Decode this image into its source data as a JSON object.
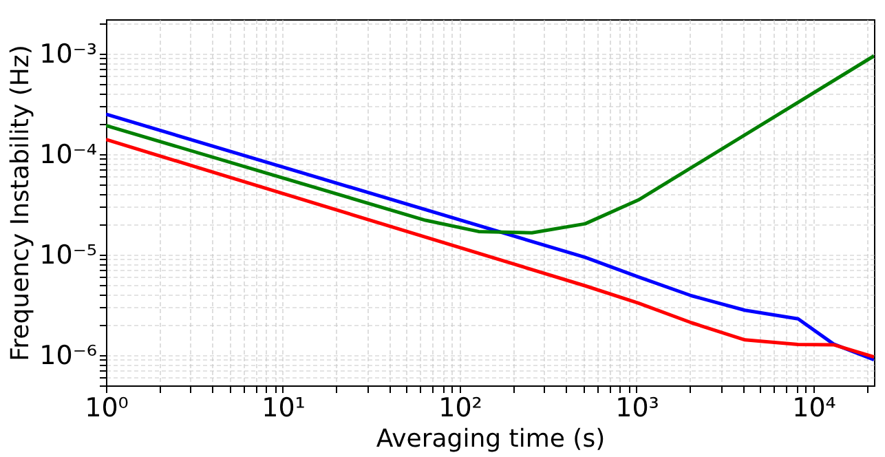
{
  "chart_data": {
    "type": "line",
    "xlabel": "Averaging time (s)",
    "ylabel": "Frequency Instability (Hz)",
    "log": "xy",
    "grid": true,
    "line_style": "solid",
    "marker": "none",
    "xlim": [
      1,
      22000
    ],
    "ylim": [
      5e-07,
      0.0022
    ],
    "xticks": [
      {
        "value": 1,
        "label": "10⁰"
      },
      {
        "value": 2,
        "label": null
      },
      {
        "value": 3,
        "label": null
      },
      {
        "value": 4,
        "label": null
      },
      {
        "value": 5,
        "label": null
      },
      {
        "value": 6,
        "label": null
      },
      {
        "value": 7,
        "label": null
      },
      {
        "value": 8,
        "label": null
      },
      {
        "value": 9,
        "label": null
      },
      {
        "value": 10,
        "label": "10¹"
      },
      {
        "value": 20,
        "label": null
      },
      {
        "value": 30,
        "label": null
      },
      {
        "value": 40,
        "label": null
      },
      {
        "value": 50,
        "label": null
      },
      {
        "value": 60,
        "label": null
      },
      {
        "value": 70,
        "label": null
      },
      {
        "value": 80,
        "label": null
      },
      {
        "value": 90,
        "label": null
      },
      {
        "value": 100,
        "label": "10²"
      },
      {
        "value": 200,
        "label": null
      },
      {
        "value": 300,
        "label": null
      },
      {
        "value": 400,
        "label": null
      },
      {
        "value": 500,
        "label": null
      },
      {
        "value": 600,
        "label": null
      },
      {
        "value": 700,
        "label": null
      },
      {
        "value": 800,
        "label": null
      },
      {
        "value": 900,
        "label": null
      },
      {
        "value": 1000,
        "label": "10³"
      },
      {
        "value": 2000,
        "label": null
      },
      {
        "value": 3000,
        "label": null
      },
      {
        "value": 4000,
        "label": null
      },
      {
        "value": 5000,
        "label": null
      },
      {
        "value": 6000,
        "label": null
      },
      {
        "value": 7000,
        "label": null
      },
      {
        "value": 8000,
        "label": null
      },
      {
        "value": 9000,
        "label": null
      },
      {
        "value": 10000,
        "label": "10⁴"
      },
      {
        "value": 20000,
        "label": null
      }
    ],
    "yticks": [
      {
        "value": 5e-07,
        "label": null
      },
      {
        "value": 6e-07,
        "label": null
      },
      {
        "value": 7e-07,
        "label": null
      },
      {
        "value": 8e-07,
        "label": null
      },
      {
        "value": 9e-07,
        "label": null
      },
      {
        "value": 1e-06,
        "label": "10⁻⁶"
      },
      {
        "value": 2e-06,
        "label": null
      },
      {
        "value": 3e-06,
        "label": null
      },
      {
        "value": 4e-06,
        "label": null
      },
      {
        "value": 5e-06,
        "label": null
      },
      {
        "value": 6e-06,
        "label": null
      },
      {
        "value": 7e-06,
        "label": null
      },
      {
        "value": 8e-06,
        "label": null
      },
      {
        "value": 9e-06,
        "label": null
      },
      {
        "value": 1e-05,
        "label": "10⁻⁵"
      },
      {
        "value": 2e-05,
        "label": null
      },
      {
        "value": 3e-05,
        "label": null
      },
      {
        "value": 4e-05,
        "label": null
      },
      {
        "value": 5e-05,
        "label": null
      },
      {
        "value": 6e-05,
        "label": null
      },
      {
        "value": 7e-05,
        "label": null
      },
      {
        "value": 8e-05,
        "label": null
      },
      {
        "value": 9e-05,
        "label": null
      },
      {
        "value": 0.0001,
        "label": "10⁻⁴"
      },
      {
        "value": 0.0002,
        "label": null
      },
      {
        "value": 0.0003,
        "label": null
      },
      {
        "value": 0.0004,
        "label": null
      },
      {
        "value": 0.0005,
        "label": null
      },
      {
        "value": 0.0006,
        "label": null
      },
      {
        "value": 0.0007,
        "label": null
      },
      {
        "value": 0.0008,
        "label": null
      },
      {
        "value": 0.0009,
        "label": null
      },
      {
        "value": 0.001,
        "label": "10⁻³"
      },
      {
        "value": 0.002,
        "label": null
      }
    ],
    "series": [
      {
        "color": "#0000ff",
        "x": [
          1,
          512,
          1024,
          2048,
          4096,
          8192,
          13000,
          22000
        ],
        "values": [
          0.00025,
          9.4e-06,
          6e-06,
          3.9e-06,
          2.8e-06,
          2.3e-06,
          1.29e-06,
          9e-07
        ]
      },
      {
        "color": "#008000",
        "x": [
          1,
          64,
          128,
          256,
          512,
          1024,
          22000
        ],
        "values": [
          0.000193,
          2.2e-05,
          1.7e-05,
          1.65e-05,
          2.03e-05,
          3.5e-05,
          0.00095
        ]
      },
      {
        "color": "#ff0000",
        "x": [
          1,
          512,
          1024,
          2048,
          4096,
          8192,
          13000,
          22000
        ],
        "values": [
          0.00014,
          4.9e-06,
          3.3e-06,
          2.1e-06,
          1.42e-06,
          1.28e-06,
          1.27e-06,
          9.6e-07
        ]
      }
    ]
  }
}
